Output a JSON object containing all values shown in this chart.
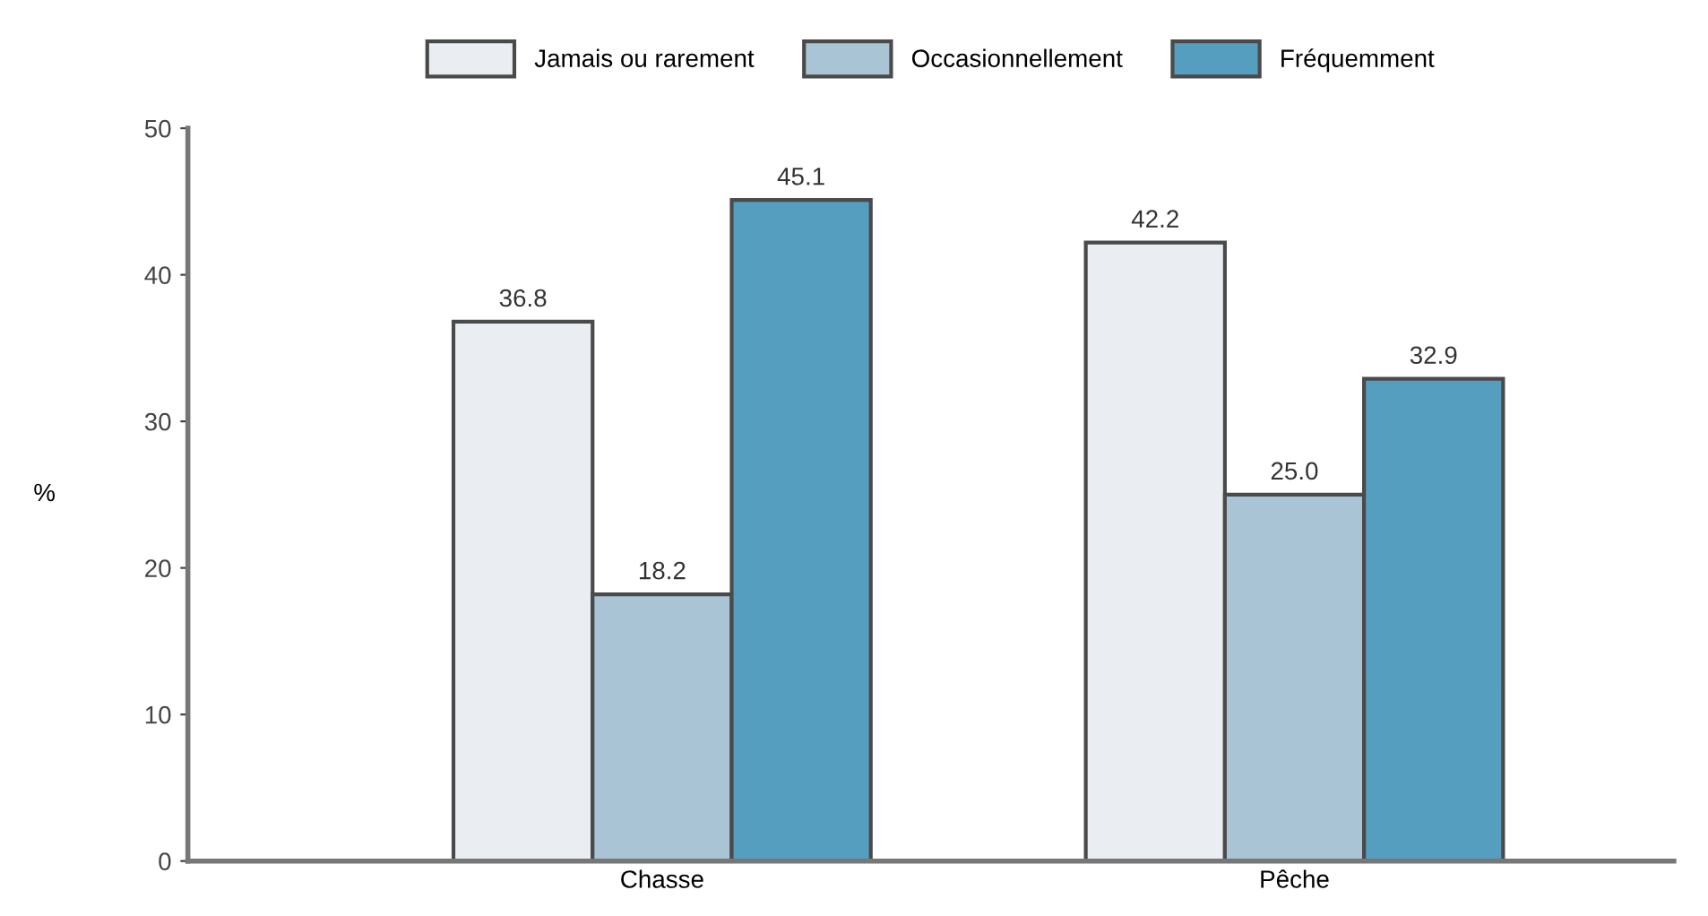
{
  "chart_data": {
    "type": "bar",
    "ylabel": "%",
    "categories": [
      "Chasse",
      "Pêche"
    ],
    "series": [
      {
        "name": "Jamais ou rarement",
        "color": "#eaeef2",
        "values": [
          36.8,
          42.2
        ],
        "value_labels": [
          "36.8",
          "42.2"
        ]
      },
      {
        "name": "Occasionnellement",
        "color": "#a9c4d4",
        "values": [
          18.2,
          25.0
        ],
        "value_labels": [
          "18.2",
          "25.0"
        ]
      },
      {
        "name": "Fréquemment",
        "color": "#559ebf",
        "values": [
          45.1,
          32.9
        ],
        "value_labels": [
          "45.1",
          "32.9"
        ]
      }
    ],
    "ylim": [
      0,
      50
    ],
    "yticks": [
      0,
      10,
      20,
      30,
      40,
      50
    ],
    "legend": "top",
    "grid": false
  }
}
